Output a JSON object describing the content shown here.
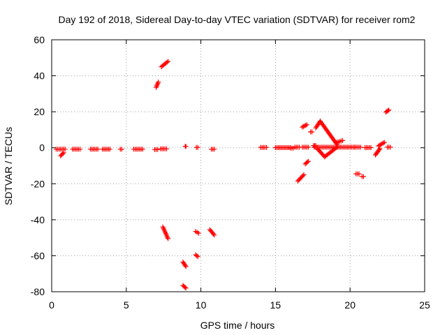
{
  "chart_data": {
    "type": "scatter",
    "title": "Day 192 of 2018, Sidereal Day-to-day VTEC variation (SDTVAR) for receiver rom2",
    "xlabel": "GPS time / hours",
    "ylabel": "SDTVAR / TECUs",
    "xlim": [
      0,
      25
    ],
    "ylim": [
      -80,
      60
    ],
    "xticks": [
      "0",
      "5",
      "10",
      "15",
      "20",
      "25"
    ],
    "yticks": [
      "-80",
      "-60",
      "-40",
      "-20",
      "0",
      "20",
      "40",
      "60"
    ],
    "grid": true,
    "marker": "plus",
    "color": "#ff0000",
    "segments": [
      {
        "x": [
          0.3,
          0.9
        ],
        "y": [
          -0.8,
          -0.8
        ]
      },
      {
        "x": [
          0.6,
          0.8
        ],
        "y": [
          -4.5,
          -2.8
        ]
      },
      {
        "x": [
          1.4,
          1.9
        ],
        "y": [
          -0.8,
          -0.8
        ]
      },
      {
        "x": [
          2.6,
          3.1
        ],
        "y": [
          -0.8,
          -0.8
        ]
      },
      {
        "x": [
          3.4,
          3.9
        ],
        "y": [
          -0.8,
          -0.8
        ]
      },
      {
        "x": [
          4.6,
          4.7
        ],
        "y": [
          -0.8,
          -0.8
        ]
      },
      {
        "x": [
          5.5,
          6.1
        ],
        "y": [
          -0.8,
          -0.8
        ]
      },
      {
        "x": [
          6.9,
          7.1
        ],
        "y": [
          -1.0,
          -1.0
        ]
      },
      {
        "x": [
          7.3,
          7.7
        ],
        "y": [
          -0.6,
          -0.6
        ]
      },
      {
        "x": [
          7.0,
          7.15
        ],
        "y": [
          33.5,
          36.5
        ]
      },
      {
        "x": [
          7.35,
          7.8
        ],
        "y": [
          45.0,
          48.0
        ]
      },
      {
        "x": [
          7.45,
          7.8
        ],
        "y": [
          -44.0,
          -50.5
        ]
      },
      {
        "x": [
          8.95,
          9.0
        ],
        "y": [
          0.8,
          0.8
        ]
      },
      {
        "x": [
          8.8,
          9.0
        ],
        "y": [
          -63.5,
          -66.0
        ]
      },
      {
        "x": [
          8.8,
          9.0
        ],
        "y": [
          -76.5,
          -78.0
        ]
      },
      {
        "x": [
          9.7,
          9.8
        ],
        "y": [
          0.2,
          0.2
        ]
      },
      {
        "x": [
          9.65,
          9.85
        ],
        "y": [
          -46.5,
          -47.5
        ]
      },
      {
        "x": [
          9.65,
          9.8
        ],
        "y": [
          -59.5,
          -60.5
        ]
      },
      {
        "x": [
          10.6,
          10.9
        ],
        "y": [
          -45.5,
          -48.5
        ]
      },
      {
        "x": [
          10.7,
          10.9
        ],
        "y": [
          -0.8,
          -0.8
        ]
      },
      {
        "x": [
          14.0,
          14.4
        ],
        "y": [
          0.2,
          0.2
        ]
      },
      {
        "x": [
          15.0,
          16.0
        ],
        "y": [
          0.1,
          0.1
        ]
      },
      {
        "x": [
          16.0,
          16.2
        ],
        "y": [
          -0.2,
          -0.2
        ]
      },
      {
        "x": [
          16.3,
          16.6
        ],
        "y": [
          0.3,
          0.3
        ]
      },
      {
        "x": [
          16.8,
          17.2
        ],
        "y": [
          0.3,
          0.3
        ]
      },
      {
        "x": [
          16.5,
          16.9
        ],
        "y": [
          -18.5,
          -15.0
        ]
      },
      {
        "x": [
          17.0,
          17.2
        ],
        "y": [
          -9.0,
          -7.5
        ]
      },
      {
        "x": [
          16.8,
          17.1
        ],
        "y": [
          11.5,
          12.8
        ]
      },
      {
        "x": [
          17.35,
          17.45
        ],
        "y": [
          8.8,
          8.8
        ]
      },
      {
        "x": [
          17.55,
          17.7
        ],
        "y": [
          1.2,
          1.2
        ]
      },
      {
        "x": [
          17.7,
          18.0
        ],
        "y": [
          11.0,
          14.8
        ]
      },
      {
        "x": [
          18.0,
          19.15
        ],
        "y": [
          14.8,
          1.5
        ]
      },
      {
        "x": [
          17.8,
          18.3
        ],
        "y": [
          -0.5,
          -5.0
        ]
      },
      {
        "x": [
          18.3,
          19.15
        ],
        "y": [
          -5.0,
          0.5
        ]
      },
      {
        "x": [
          17.6,
          20.3
        ],
        "y": [
          0.3,
          0.3
        ]
      },
      {
        "x": [
          19.1,
          19.5
        ],
        "y": [
          3.0,
          4.0
        ]
      },
      {
        "x": [
          20.3,
          20.7
        ],
        "y": [
          0.3,
          0.3
        ]
      },
      {
        "x": [
          20.4,
          20.6
        ],
        "y": [
          -14.5,
          -14.5
        ]
      },
      {
        "x": [
          20.8,
          20.9
        ],
        "y": [
          -16.0,
          -16.0
        ]
      },
      {
        "x": [
          21.0,
          21.4
        ],
        "y": [
          0.1,
          0.1
        ]
      },
      {
        "x": [
          21.7,
          22.0
        ],
        "y": [
          -4.0,
          -0.5
        ]
      },
      {
        "x": [
          21.9,
          22.3
        ],
        "y": [
          1.0,
          3.0
        ]
      },
      {
        "x": [
          22.5,
          22.7
        ],
        "y": [
          0.3,
          0.3
        ]
      },
      {
        "x": [
          22.4,
          22.6
        ],
        "y": [
          19.8,
          21.0
        ]
      }
    ]
  }
}
